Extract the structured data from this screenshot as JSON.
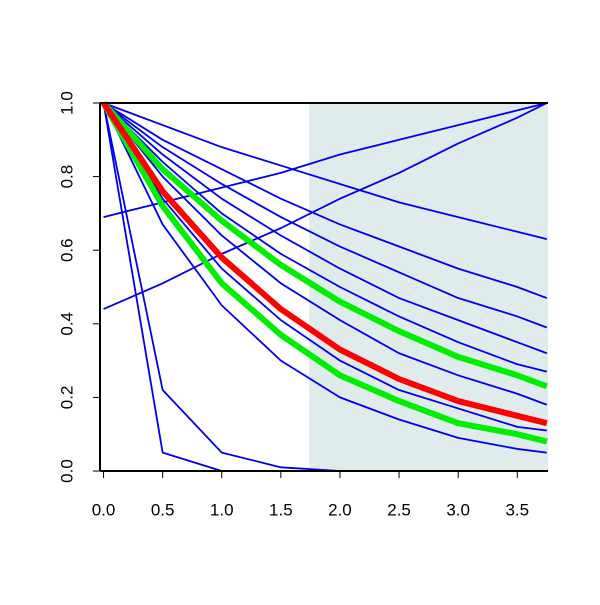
{
  "chart_data": {
    "type": "line",
    "x": [
      0,
      0.5,
      1,
      1.5,
      2,
      2.5,
      3,
      3.5,
      3.75
    ],
    "xlim": [
      -0.03,
      3.76
    ],
    "ylim": [
      0,
      1
    ],
    "xticks": [
      {
        "value": 0,
        "label": "0.0"
      },
      0.5,
      {
        "value": 1,
        "label": "1.0"
      },
      1.5,
      {
        "value": 2,
        "label": "2.0"
      },
      2.5,
      {
        "value": 3,
        "label": "3.0"
      },
      3.5
    ],
    "yticks": [
      {
        "value": 0,
        "label": "0.0"
      },
      0.2,
      0.4,
      0.6,
      0.8,
      {
        "value": 1,
        "label": "1.0"
      }
    ],
    "shaded_region": [
      1.74,
      3.76
    ],
    "shade_color": "#dfeceb",
    "series": [
      {
        "color": "#0000ee",
        "values": [
          1,
          0.94,
          0.88,
          0.83,
          0.78,
          0.73,
          0.69,
          0.65,
          0.63
        ]
      },
      {
        "color": "#0000ee",
        "values": [
          1,
          0.9,
          0.82,
          0.74,
          0.67,
          0.61,
          0.55,
          0.5,
          0.47
        ]
      },
      {
        "color": "#0000ee",
        "values": [
          1,
          0.88,
          0.78,
          0.69,
          0.61,
          0.54,
          0.47,
          0.42,
          0.39
        ]
      },
      {
        "color": "#0000ee",
        "values": [
          1,
          0.86,
          0.74,
          0.64,
          0.55,
          0.47,
          0.41,
          0.35,
          0.32
        ]
      },
      {
        "color": "#0000ee",
        "values": [
          1,
          0.84,
          0.7,
          0.59,
          0.5,
          0.42,
          0.35,
          0.29,
          0.27
        ]
      },
      {
        "color": "#0000ee",
        "values": [
          1,
          0.8,
          0.64,
          0.51,
          0.41,
          0.32,
          0.26,
          0.21,
          0.18
        ]
      },
      {
        "color": "#0000ee",
        "values": [
          1,
          0.74,
          0.55,
          0.41,
          0.3,
          0.22,
          0.17,
          0.12,
          0.11
        ]
      },
      {
        "color": "#0000ee",
        "values": [
          1,
          0.67,
          0.45,
          0.3,
          0.2,
          0.14,
          0.09,
          0.06,
          0.05
        ]
      },
      {
        "color": "#0000ee",
        "values": [
          1,
          0.22,
          0.05,
          0.01,
          0,
          0,
          0,
          0,
          0
        ]
      },
      {
        "color": "#0000ee",
        "values": [
          1,
          0.05,
          0,
          0,
          0,
          0,
          0,
          0,
          0
        ]
      },
      {
        "color": "#0000ee",
        "values": [
          0.44,
          0.51,
          0.59,
          0.66,
          0.74,
          0.81,
          0.89,
          0.96,
          1
        ]
      },
      {
        "color": "#0000ee",
        "values": [
          0.69,
          0.73,
          0.77,
          0.81,
          0.86,
          0.9,
          0.94,
          0.98,
          1
        ]
      },
      {
        "color": "#00ee00",
        "values": [
          1,
          0.82,
          0.68,
          0.56,
          0.46,
          0.38,
          0.31,
          0.26,
          0.23
        ]
      },
      {
        "color": "#00ee00",
        "values": [
          1,
          0.72,
          0.51,
          0.37,
          0.26,
          0.19,
          0.13,
          0.1,
          0.08
        ]
      },
      {
        "color": "#ff0000",
        "values": [
          1,
          0.76,
          0.58,
          0.44,
          0.33,
          0.25,
          0.19,
          0.15,
          0.13
        ]
      }
    ]
  }
}
